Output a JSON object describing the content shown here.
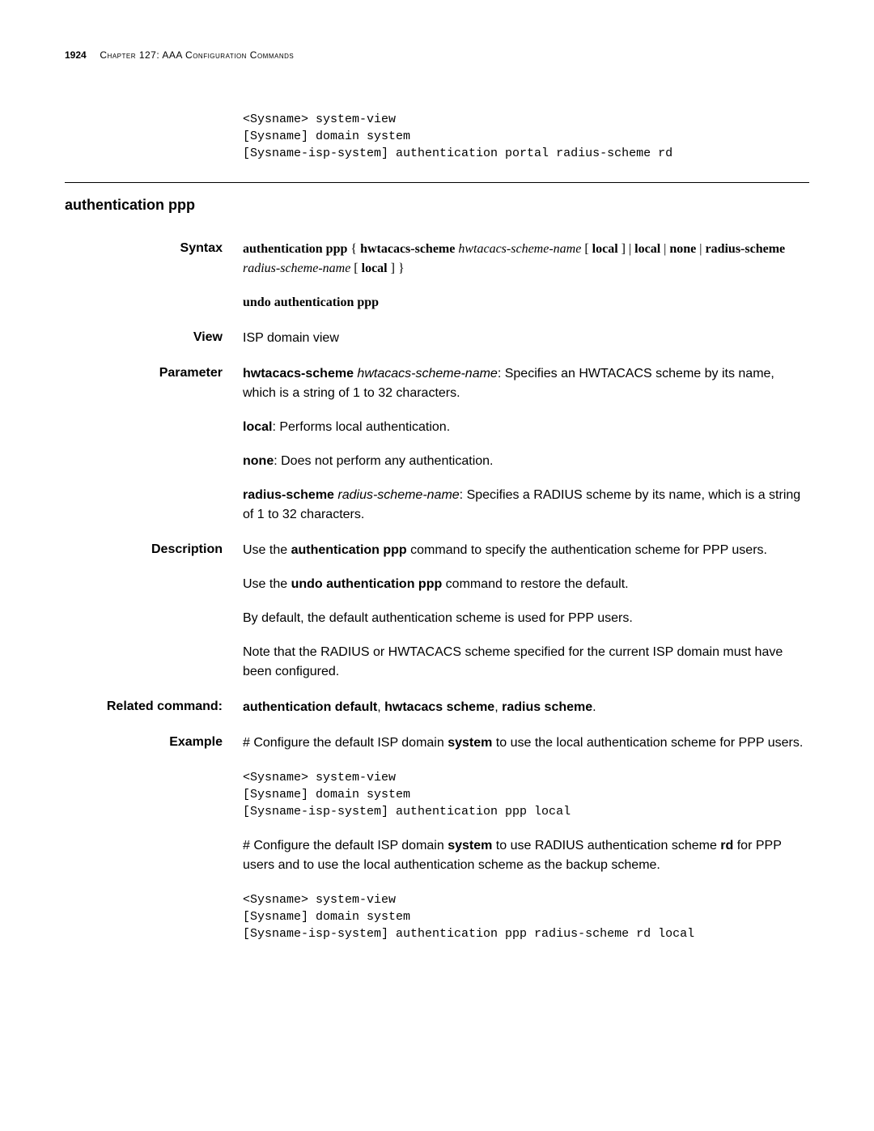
{
  "header": {
    "page_number": "1924",
    "chapter_text": "Chapter 127: AAA Configuration Commands"
  },
  "top_code": "<Sysname> system-view\n[Sysname] domain system\n[Sysname-isp-system] authentication portal radius-scheme rd",
  "section_title": "authentication ppp",
  "syntax": {
    "label": "Syntax",
    "line1_b1": "authentication ppp",
    "line1_t1": " { ",
    "line1_b2": "hwtacacs-scheme",
    "line1_t2": " ",
    "line1_i1": "hwtacacs-scheme-name",
    "line1_t3": " [ ",
    "line1_b3": "local",
    "line1_t4": " ] | ",
    "line1_b4": "local",
    "line1_t5": " | ",
    "line1_b5": "none",
    "line1_t6": " | ",
    "line1_b6": "radius-scheme",
    "line1_t7": " ",
    "line1_i2": "radius-scheme-name",
    "line1_t8": " [ ",
    "line1_b7": "local",
    "line1_t9": " ] }",
    "undo": "undo authentication ppp"
  },
  "view": {
    "label": "View",
    "text": "ISP domain view"
  },
  "parameter": {
    "label": "Parameter",
    "p1_b": "hwtacacs-scheme",
    "p1_i": "hwtacacs-scheme-name",
    "p1_t": ": Specifies an HWTACACS scheme by its name, which is a string of 1 to 32 characters.",
    "p2_b": "local",
    "p2_t": ": Performs local authentication.",
    "p3_b": "none",
    "p3_t": ": Does not perform any authentication.",
    "p4_b": "radius-scheme",
    "p4_i": "radius-scheme-name",
    "p4_t": ": Specifies a RADIUS scheme by its name, which is a string of 1 to 32 characters."
  },
  "description": {
    "label": "Description",
    "d1_t1": "Use the ",
    "d1_b": "authentication ppp",
    "d1_t2": " command to specify the authentication scheme for PPP users.",
    "d2_t1": "Use the ",
    "d2_b": "undo authentication ppp",
    "d2_t2": " command to restore the default.",
    "d3": "By default, the default authentication scheme is used for PPP users.",
    "d4": "Note that the RADIUS or HWTACACS scheme specified for the current ISP domain must have been configured."
  },
  "related": {
    "label": "Related command:",
    "r_b1": "authentication default",
    "r_t1": ", ",
    "r_b2": "hwtacacs scheme",
    "r_t2": ", ",
    "r_b3": "radius scheme",
    "r_t3": "."
  },
  "example": {
    "label": "Example",
    "e1_t1": "# Configure the default ISP domain ",
    "e1_b1": "system",
    "e1_t2": " to use the local authentication scheme for PPP users.",
    "code1": "<Sysname> system-view\n[Sysname] domain system\n[Sysname-isp-system] authentication ppp local",
    "e2_t1": "# Configure the default ISP domain ",
    "e2_b1": "system",
    "e2_t2": " to use RADIUS authentication scheme ",
    "e2_b2": "rd",
    "e2_t3": " for PPP users and to use the local authentication scheme as the backup scheme.",
    "code2": "<Sysname> system-view\n[Sysname] domain system\n[Sysname-isp-system] authentication ppp radius-scheme rd local"
  }
}
